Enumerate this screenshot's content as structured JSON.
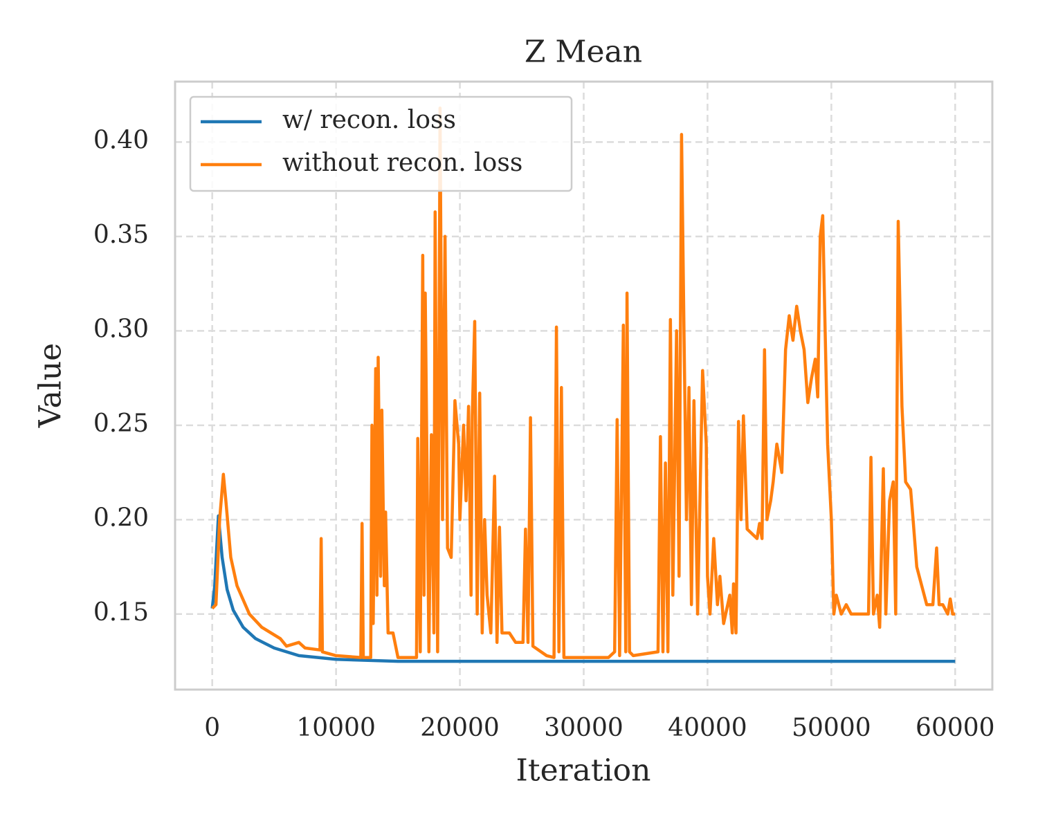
{
  "chart_data": {
    "type": "line",
    "title": "Z Mean",
    "xlabel": "Iteration",
    "ylabel": "Value",
    "xlim": [
      -3000,
      63000
    ],
    "ylim": [
      0.11,
      0.432
    ],
    "xticks": [
      0,
      10000,
      20000,
      30000,
      40000,
      50000,
      60000
    ],
    "yticks": [
      0.15,
      {
        "value": 0.2,
        "label": "0.20"
      },
      0.25,
      {
        "value": 0.3,
        "label": "0.30"
      },
      0.35,
      {
        "value": 0.4,
        "label": "0.40"
      }
    ],
    "grid": true,
    "legend": "upper left",
    "series": [
      {
        "name": "w/ recon. loss",
        "color": "#1f77b4",
        "x": [
          0,
          200,
          500,
          800,
          1200,
          1700,
          2500,
          3500,
          5000,
          7000,
          10000,
          15000,
          20000,
          30000,
          40000,
          50000,
          60000
        ],
        "values": [
          0.153,
          0.165,
          0.202,
          0.18,
          0.163,
          0.152,
          0.143,
          0.137,
          0.132,
          0.128,
          0.126,
          0.125,
          0.125,
          0.125,
          0.125,
          0.125,
          0.125
        ]
      },
      {
        "name": "without recon. loss",
        "color": "#ff7f0e",
        "x": [
          0,
          300,
          600,
          900,
          1100,
          1500,
          2000,
          3000,
          4000,
          5500,
          6000,
          7000,
          7500,
          8700,
          8800,
          8900,
          10000,
          12000,
          12100,
          12200,
          12800,
          12900,
          13000,
          13200,
          13300,
          13400,
          13600,
          13700,
          13900,
          14000,
          14200,
          14600,
          15000,
          16500,
          16600,
          16800,
          17000,
          17100,
          17200,
          17500,
          17700,
          17900,
          18000,
          18200,
          18300,
          18400,
          18600,
          18800,
          19000,
          19300,
          19600,
          19900,
          20000,
          20300,
          20500,
          20700,
          20900,
          21000,
          21200,
          21400,
          21600,
          21800,
          22000,
          22200,
          22500,
          22800,
          23000,
          23200,
          23400,
          24000,
          24500,
          25100,
          25300,
          25500,
          25700,
          25900,
          27000,
          27600,
          27800,
          28000,
          28200,
          28400,
          30000,
          32000,
          32500,
          32700,
          32900,
          33200,
          33400,
          33500,
          33700,
          34000,
          36000,
          36200,
          36400,
          36600,
          36800,
          37000,
          37200,
          37500,
          37700,
          37900,
          38100,
          38300,
          38500,
          38700,
          38900,
          39200,
          39600,
          39900,
          40000,
          40200,
          40500,
          40800,
          41000,
          41300,
          41800,
          42000,
          42100,
          42300,
          42500,
          42700,
          42900,
          43200,
          44000,
          44200,
          44400,
          44600,
          44800,
          45100,
          45300,
          45600,
          46000,
          46300,
          46600,
          46900,
          47200,
          47500,
          47800,
          48100,
          48400,
          48700,
          48900,
          49100,
          49300,
          49500,
          49700,
          50000,
          50200,
          50400,
          50800,
          51200,
          51600,
          52200,
          53000,
          53200,
          53400,
          53700,
          53900,
          54200,
          54400,
          54700,
          55000,
          55200,
          55400,
          55700,
          56000,
          56400,
          56600,
          56900,
          57300,
          57700,
          58200,
          58500,
          58700,
          59000,
          59400,
          59600,
          59800,
          60000
        ],
        "values": [
          0.153,
          0.155,
          0.2,
          0.224,
          0.21,
          0.18,
          0.165,
          0.15,
          0.143,
          0.137,
          0.133,
          0.135,
          0.132,
          0.131,
          0.19,
          0.13,
          0.128,
          0.127,
          0.198,
          0.127,
          0.127,
          0.25,
          0.145,
          0.28,
          0.16,
          0.286,
          0.17,
          0.258,
          0.165,
          0.204,
          0.14,
          0.14,
          0.127,
          0.127,
          0.243,
          0.13,
          0.34,
          0.16,
          0.32,
          0.13,
          0.245,
          0.14,
          0.363,
          0.13,
          0.25,
          0.418,
          0.2,
          0.35,
          0.185,
          0.18,
          0.263,
          0.24,
          0.2,
          0.25,
          0.21,
          0.26,
          0.16,
          0.255,
          0.305,
          0.15,
          0.267,
          0.14,
          0.2,
          0.16,
          0.14,
          0.223,
          0.135,
          0.196,
          0.14,
          0.14,
          0.135,
          0.135,
          0.195,
          0.135,
          0.254,
          0.133,
          0.128,
          0.127,
          0.302,
          0.13,
          0.27,
          0.127,
          0.127,
          0.127,
          0.13,
          0.253,
          0.128,
          0.303,
          0.13,
          0.32,
          0.13,
          0.128,
          0.13,
          0.244,
          0.13,
          0.23,
          0.13,
          0.306,
          0.16,
          0.3,
          0.17,
          0.404,
          0.3,
          0.2,
          0.27,
          0.155,
          0.263,
          0.15,
          0.279,
          0.24,
          0.17,
          0.15,
          0.19,
          0.155,
          0.17,
          0.145,
          0.16,
          0.14,
          0.166,
          0.14,
          0.252,
          0.2,
          0.255,
          0.195,
          0.19,
          0.198,
          0.19,
          0.29,
          0.2,
          0.21,
          0.22,
          0.24,
          0.225,
          0.29,
          0.308,
          0.295,
          0.313,
          0.3,
          0.29,
          0.262,
          0.275,
          0.285,
          0.265,
          0.35,
          0.361,
          0.3,
          0.24,
          0.2,
          0.15,
          0.16,
          0.15,
          0.155,
          0.15,
          0.15,
          0.15,
          0.233,
          0.15,
          0.16,
          0.143,
          0.227,
          0.15,
          0.21,
          0.22,
          0.15,
          0.358,
          0.26,
          0.22,
          0.216,
          0.2,
          0.175,
          0.165,
          0.155,
          0.155,
          0.185,
          0.155,
          0.155,
          0.15,
          0.158,
          0.15,
          0.15
        ]
      }
    ]
  }
}
